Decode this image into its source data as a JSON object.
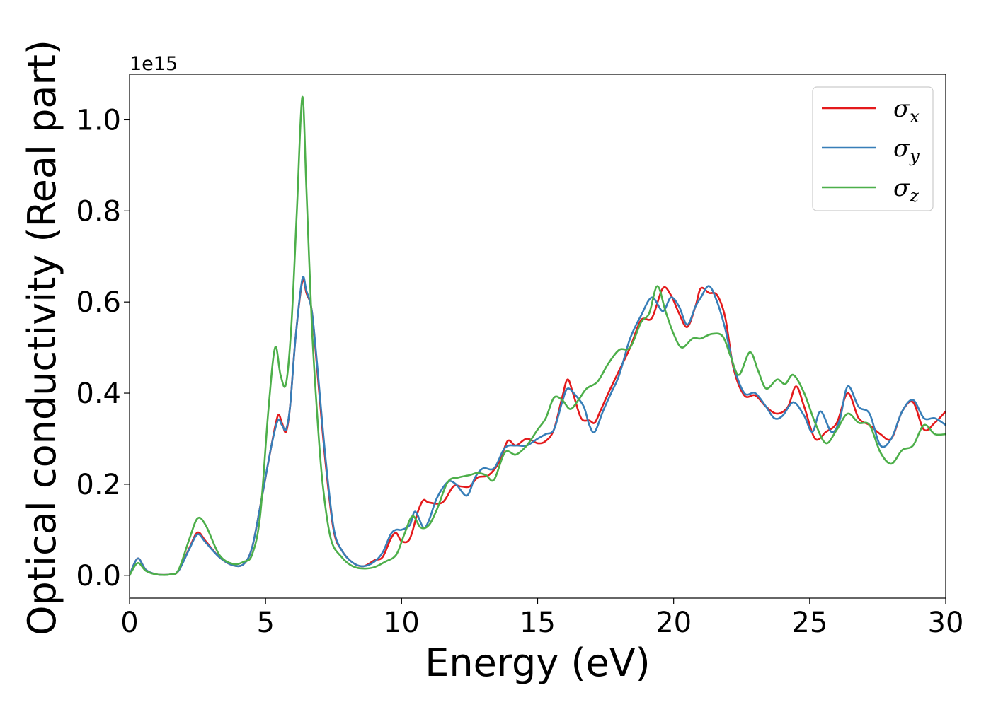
{
  "chart_data": {
    "type": "line",
    "xlabel": "Energy (eV)",
    "ylabel": "Optical conductivity (Real part)",
    "y_offset_label": "1e15",
    "xlim": [
      0,
      30
    ],
    "ylim": [
      -0.05,
      1.1
    ],
    "x_ticks": [
      0,
      5,
      10,
      15,
      20,
      25,
      30
    ],
    "x_tick_labels": [
      "0",
      "5",
      "10",
      "15",
      "20",
      "25",
      "30"
    ],
    "y_ticks": [
      0.0,
      0.2,
      0.4,
      0.6,
      0.8,
      1.0
    ],
    "y_tick_labels": [
      "0.0",
      "0.2",
      "0.4",
      "0.6",
      "0.8",
      "1.0"
    ],
    "grid": false,
    "legend_position": "top-right",
    "series": [
      {
        "name": "σx",
        "symbol": "σ",
        "sub": "x",
        "color": "#e41a1c",
        "points": [
          [
            0,
            0
          ],
          [
            0.3,
            0.037
          ],
          [
            0.6,
            0.012
          ],
          [
            1.0,
            0.002
          ],
          [
            1.5,
            0.002
          ],
          [
            1.8,
            0.01
          ],
          [
            2.2,
            0.06
          ],
          [
            2.5,
            0.094
          ],
          [
            2.8,
            0.075
          ],
          [
            3.3,
            0.04
          ],
          [
            3.8,
            0.022
          ],
          [
            4.2,
            0.025
          ],
          [
            4.5,
            0.06
          ],
          [
            4.8,
            0.15
          ],
          [
            5.2,
            0.28
          ],
          [
            5.45,
            0.35
          ],
          [
            5.6,
            0.335
          ],
          [
            5.75,
            0.315
          ],
          [
            5.9,
            0.37
          ],
          [
            6.1,
            0.52
          ],
          [
            6.35,
            0.645
          ],
          [
            6.5,
            0.62
          ],
          [
            6.7,
            0.58
          ],
          [
            6.9,
            0.45
          ],
          [
            7.2,
            0.25
          ],
          [
            7.5,
            0.1
          ],
          [
            7.8,
            0.055
          ],
          [
            8.2,
            0.028
          ],
          [
            8.6,
            0.02
          ],
          [
            9.0,
            0.033
          ],
          [
            9.3,
            0.04
          ],
          [
            9.6,
            0.08
          ],
          [
            9.8,
            0.093
          ],
          [
            10.0,
            0.075
          ],
          [
            10.3,
            0.08
          ],
          [
            10.6,
            0.14
          ],
          [
            10.8,
            0.165
          ],
          [
            11.0,
            0.16
          ],
          [
            11.5,
            0.16
          ],
          [
            11.9,
            0.195
          ],
          [
            12.2,
            0.195
          ],
          [
            12.5,
            0.195
          ],
          [
            12.8,
            0.215
          ],
          [
            13.2,
            0.22
          ],
          [
            13.6,
            0.25
          ],
          [
            13.9,
            0.295
          ],
          [
            14.2,
            0.285
          ],
          [
            14.6,
            0.3
          ],
          [
            15.0,
            0.29
          ],
          [
            15.3,
            0.295
          ],
          [
            15.6,
            0.32
          ],
          [
            15.9,
            0.39
          ],
          [
            16.1,
            0.43
          ],
          [
            16.3,
            0.4
          ],
          [
            16.6,
            0.345
          ],
          [
            16.9,
            0.34
          ],
          [
            17.1,
            0.335
          ],
          [
            17.3,
            0.36
          ],
          [
            17.6,
            0.4
          ],
          [
            18.0,
            0.45
          ],
          [
            18.4,
            0.5
          ],
          [
            18.8,
            0.56
          ],
          [
            19.2,
            0.565
          ],
          [
            19.6,
            0.63
          ],
          [
            19.9,
            0.615
          ],
          [
            20.2,
            0.575
          ],
          [
            20.5,
            0.545
          ],
          [
            20.8,
            0.59
          ],
          [
            21.0,
            0.63
          ],
          [
            21.3,
            0.62
          ],
          [
            21.6,
            0.615
          ],
          [
            21.9,
            0.565
          ],
          [
            22.2,
            0.455
          ],
          [
            22.6,
            0.395
          ],
          [
            23.0,
            0.395
          ],
          [
            23.4,
            0.37
          ],
          [
            23.8,
            0.355
          ],
          [
            24.2,
            0.37
          ],
          [
            24.5,
            0.415
          ],
          [
            24.8,
            0.37
          ],
          [
            25.2,
            0.3
          ],
          [
            25.6,
            0.315
          ],
          [
            26.0,
            0.335
          ],
          [
            26.4,
            0.4
          ],
          [
            26.8,
            0.345
          ],
          [
            27.2,
            0.33
          ],
          [
            27.6,
            0.31
          ],
          [
            28.0,
            0.3
          ],
          [
            28.4,
            0.36
          ],
          [
            28.8,
            0.38
          ],
          [
            29.2,
            0.32
          ],
          [
            29.6,
            0.335
          ],
          [
            30.0,
            0.36
          ]
        ]
      },
      {
        "name": "σy",
        "symbol": "σ",
        "sub": "y",
        "color": "#377eb8",
        "points": [
          [
            0,
            0
          ],
          [
            0.3,
            0.037
          ],
          [
            0.6,
            0.012
          ],
          [
            1.0,
            0.002
          ],
          [
            1.5,
            0.002
          ],
          [
            1.8,
            0.01
          ],
          [
            2.2,
            0.058
          ],
          [
            2.5,
            0.09
          ],
          [
            2.8,
            0.072
          ],
          [
            3.3,
            0.04
          ],
          [
            3.8,
            0.022
          ],
          [
            4.2,
            0.025
          ],
          [
            4.5,
            0.06
          ],
          [
            4.8,
            0.15
          ],
          [
            5.2,
            0.28
          ],
          [
            5.45,
            0.34
          ],
          [
            5.6,
            0.33
          ],
          [
            5.75,
            0.32
          ],
          [
            5.9,
            0.37
          ],
          [
            6.1,
            0.52
          ],
          [
            6.35,
            0.65
          ],
          [
            6.5,
            0.625
          ],
          [
            6.7,
            0.58
          ],
          [
            6.9,
            0.46
          ],
          [
            7.2,
            0.26
          ],
          [
            7.5,
            0.105
          ],
          [
            7.8,
            0.055
          ],
          [
            8.2,
            0.028
          ],
          [
            8.6,
            0.02
          ],
          [
            9.0,
            0.03
          ],
          [
            9.3,
            0.05
          ],
          [
            9.6,
            0.09
          ],
          [
            9.8,
            0.1
          ],
          [
            10.0,
            0.1
          ],
          [
            10.3,
            0.11
          ],
          [
            10.5,
            0.14
          ],
          [
            10.8,
            0.105
          ],
          [
            11.0,
            0.12
          ],
          [
            11.3,
            0.17
          ],
          [
            11.7,
            0.205
          ],
          [
            12.0,
            0.2
          ],
          [
            12.4,
            0.175
          ],
          [
            12.7,
            0.215
          ],
          [
            13.0,
            0.235
          ],
          [
            13.4,
            0.235
          ],
          [
            13.8,
            0.28
          ],
          [
            14.2,
            0.285
          ],
          [
            14.6,
            0.285
          ],
          [
            15.0,
            0.3
          ],
          [
            15.3,
            0.31
          ],
          [
            15.6,
            0.32
          ],
          [
            15.9,
            0.38
          ],
          [
            16.1,
            0.41
          ],
          [
            16.4,
            0.395
          ],
          [
            16.7,
            0.37
          ],
          [
            16.9,
            0.33
          ],
          [
            17.1,
            0.315
          ],
          [
            17.4,
            0.36
          ],
          [
            17.7,
            0.4
          ],
          [
            18.0,
            0.44
          ],
          [
            18.4,
            0.52
          ],
          [
            18.8,
            0.57
          ],
          [
            19.2,
            0.61
          ],
          [
            19.6,
            0.58
          ],
          [
            19.9,
            0.61
          ],
          [
            20.2,
            0.59
          ],
          [
            20.5,
            0.55
          ],
          [
            20.8,
            0.59
          ],
          [
            21.0,
            0.61
          ],
          [
            21.3,
            0.635
          ],
          [
            21.6,
            0.6
          ],
          [
            21.9,
            0.54
          ],
          [
            22.2,
            0.46
          ],
          [
            22.6,
            0.4
          ],
          [
            23.0,
            0.4
          ],
          [
            23.4,
            0.37
          ],
          [
            23.7,
            0.345
          ],
          [
            24.0,
            0.35
          ],
          [
            24.4,
            0.38
          ],
          [
            24.8,
            0.35
          ],
          [
            25.1,
            0.315
          ],
          [
            25.4,
            0.36
          ],
          [
            25.8,
            0.315
          ],
          [
            26.1,
            0.34
          ],
          [
            26.4,
            0.415
          ],
          [
            26.8,
            0.37
          ],
          [
            27.2,
            0.355
          ],
          [
            27.6,
            0.285
          ],
          [
            28.0,
            0.3
          ],
          [
            28.4,
            0.36
          ],
          [
            28.8,
            0.385
          ],
          [
            29.2,
            0.345
          ],
          [
            29.6,
            0.345
          ],
          [
            30.0,
            0.33
          ]
        ]
      },
      {
        "name": "σz",
        "symbol": "σ",
        "sub": "z",
        "color": "#4daf4a",
        "points": [
          [
            0,
            0
          ],
          [
            0.3,
            0.027
          ],
          [
            0.6,
            0.01
          ],
          [
            1.0,
            0.002
          ],
          [
            1.5,
            0.002
          ],
          [
            1.8,
            0.012
          ],
          [
            2.2,
            0.08
          ],
          [
            2.5,
            0.125
          ],
          [
            2.8,
            0.11
          ],
          [
            3.3,
            0.045
          ],
          [
            3.8,
            0.025
          ],
          [
            4.2,
            0.03
          ],
          [
            4.5,
            0.045
          ],
          [
            4.8,
            0.13
          ],
          [
            5.1,
            0.36
          ],
          [
            5.35,
            0.5
          ],
          [
            5.55,
            0.44
          ],
          [
            5.75,
            0.42
          ],
          [
            5.95,
            0.55
          ],
          [
            6.15,
            0.8
          ],
          [
            6.35,
            1.05
          ],
          [
            6.5,
            0.85
          ],
          [
            6.7,
            0.55
          ],
          [
            6.9,
            0.35
          ],
          [
            7.1,
            0.2
          ],
          [
            7.4,
            0.08
          ],
          [
            7.8,
            0.04
          ],
          [
            8.2,
            0.02
          ],
          [
            8.6,
            0.015
          ],
          [
            9.0,
            0.018
          ],
          [
            9.4,
            0.03
          ],
          [
            9.8,
            0.045
          ],
          [
            10.1,
            0.09
          ],
          [
            10.4,
            0.13
          ],
          [
            10.7,
            0.105
          ],
          [
            11.0,
            0.11
          ],
          [
            11.3,
            0.145
          ],
          [
            11.7,
            0.205
          ],
          [
            12.1,
            0.215
          ],
          [
            12.5,
            0.22
          ],
          [
            12.8,
            0.225
          ],
          [
            13.1,
            0.22
          ],
          [
            13.4,
            0.21
          ],
          [
            13.8,
            0.27
          ],
          [
            14.2,
            0.265
          ],
          [
            14.6,
            0.285
          ],
          [
            15.0,
            0.32
          ],
          [
            15.3,
            0.345
          ],
          [
            15.6,
            0.39
          ],
          [
            15.9,
            0.385
          ],
          [
            16.2,
            0.365
          ],
          [
            16.5,
            0.385
          ],
          [
            16.8,
            0.41
          ],
          [
            17.2,
            0.425
          ],
          [
            17.6,
            0.465
          ],
          [
            18.0,
            0.495
          ],
          [
            18.4,
            0.5
          ],
          [
            18.8,
            0.555
          ],
          [
            19.1,
            0.575
          ],
          [
            19.4,
            0.635
          ],
          [
            19.7,
            0.58
          ],
          [
            20.0,
            0.53
          ],
          [
            20.3,
            0.5
          ],
          [
            20.7,
            0.52
          ],
          [
            21.0,
            0.52
          ],
          [
            21.4,
            0.53
          ],
          [
            21.8,
            0.525
          ],
          [
            22.1,
            0.48
          ],
          [
            22.4,
            0.44
          ],
          [
            22.8,
            0.49
          ],
          [
            23.1,
            0.45
          ],
          [
            23.4,
            0.41
          ],
          [
            23.8,
            0.43
          ],
          [
            24.1,
            0.42
          ],
          [
            24.4,
            0.44
          ],
          [
            24.8,
            0.4
          ],
          [
            25.2,
            0.335
          ],
          [
            25.6,
            0.29
          ],
          [
            26.0,
            0.32
          ],
          [
            26.4,
            0.355
          ],
          [
            26.8,
            0.335
          ],
          [
            27.2,
            0.33
          ],
          [
            27.6,
            0.27
          ],
          [
            28.0,
            0.245
          ],
          [
            28.4,
            0.275
          ],
          [
            28.8,
            0.285
          ],
          [
            29.2,
            0.33
          ],
          [
            29.6,
            0.31
          ],
          [
            30.0,
            0.31
          ]
        ]
      }
    ]
  }
}
